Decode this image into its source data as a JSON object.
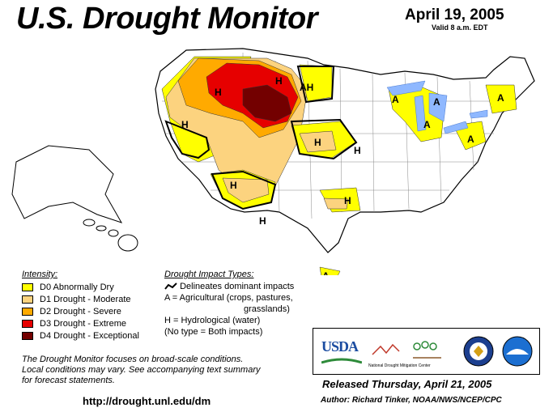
{
  "header": {
    "title": "U.S. Drought Monitor",
    "date": "April 19, 2005",
    "valid": "Valid 8 a.m. EDT"
  },
  "legend": {
    "intensity_heading": "Intensity:",
    "items": [
      {
        "label": "D0 Abnormally Dry",
        "color": "#ffff00"
      },
      {
        "label": "D1 Drought - Moderate",
        "color": "#fcd37f"
      },
      {
        "label": "D2 Drought - Severe",
        "color": "#ffaa00"
      },
      {
        "label": "D3 Drought - Extreme",
        "color": "#e60000"
      },
      {
        "label": "D4 Drought - Exceptional",
        "color": "#730000"
      }
    ],
    "impact_heading": "Drought Impact Types:",
    "impact_items": [
      "Delineates dominant impacts",
      "A = Agricultural (crops, pastures,",
      "grasslands)",
      "H = Hydrological (water)",
      "(No type = Both impacts)"
    ]
  },
  "map_labels": [
    "A",
    "A",
    "A",
    "A",
    "A",
    "AH",
    "H",
    "H",
    "H",
    "H",
    "H",
    "H",
    "H",
    "H",
    "A"
  ],
  "disclaimer": [
    "The Drought Monitor focuses on broad-scale conditions.",
    "Local conditions may vary.  See accompanying text summary",
    "for forecast statements."
  ],
  "url": "http://drought.unl.edu/dm",
  "logos": {
    "usda": "USDA",
    "ndmc": "National Drought Mitigation Center"
  },
  "released": "Released Thursday, April 21, 2005",
  "author": "Author:  Richard Tinker, NOAA/NWS/NCEP/CPC"
}
